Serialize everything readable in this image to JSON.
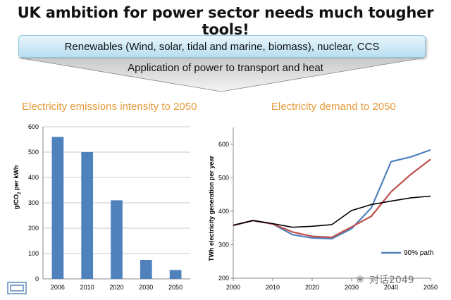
{
  "title": "UK ambition for power sector needs much tougher tools!",
  "banner": "Renewables (Wind, solar, tidal and marine, biomass), nuclear, CCS",
  "arrow_label": "Application of power to transport and heat",
  "watermark": "对话2049",
  "colors": {
    "bar": "#4f81bd",
    "path_90": "#4f81bd",
    "red_line": "#c0504d",
    "black_line": "#000000",
    "subtitle": "#e69a3a"
  },
  "chart_data": [
    {
      "type": "bar",
      "title": "Electricity emissions intensity to 2050",
      "ylabel": "g/CO2 per kWh",
      "ylabel_main": "g/CO",
      "ylabel_sub": "2",
      "ylabel_rest": " per kWh",
      "categories": [
        "2006",
        "2010",
        "2020",
        "2030",
        "2050"
      ],
      "values": [
        560,
        500,
        310,
        75,
        35
      ],
      "ylim": [
        0,
        600
      ],
      "yticks": [
        "0",
        "100",
        "200",
        "300",
        "400",
        "500",
        "600"
      ],
      "grid": true
    },
    {
      "type": "line",
      "title": "Electricity demand to 2050",
      "ylabel": "TWh electricity generation per year",
      "xlim": [
        2000,
        2050
      ],
      "ylim": [
        200,
        650
      ],
      "xticks": [
        "2000",
        "2010",
        "2020",
        "2030",
        "2040",
        "2050"
      ],
      "yticks": [
        "200",
        "300",
        "400",
        "500",
        "600"
      ],
      "legend": "bottom-right",
      "series": [
        {
          "name": "90% path",
          "x": [
            2000,
            2005,
            2010,
            2015,
            2020,
            2025,
            2030,
            2035,
            2040,
            2045,
            2050
          ],
          "values": [
            358,
            372,
            362,
            330,
            320,
            318,
            348,
            410,
            548,
            562,
            583
          ]
        },
        {
          "name": "",
          "x": [
            2000,
            2005,
            2010,
            2015,
            2020,
            2025,
            2030,
            2035,
            2040,
            2045,
            2050
          ],
          "values": [
            358,
            372,
            362,
            338,
            325,
            322,
            353,
            385,
            458,
            510,
            555
          ]
        },
        {
          "name": "",
          "x": [
            2000,
            2005,
            2010,
            2015,
            2020,
            2025,
            2030,
            2035,
            2040,
            2045,
            2050
          ],
          "values": [
            358,
            372,
            363,
            352,
            355,
            360,
            402,
            420,
            430,
            440,
            445
          ]
        }
      ]
    }
  ]
}
